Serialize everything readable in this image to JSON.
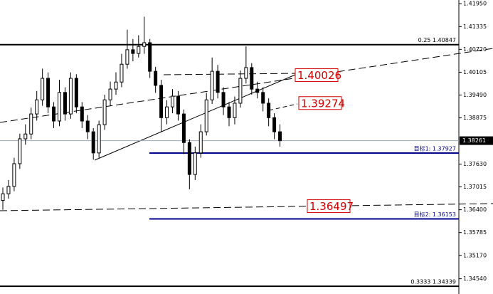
{
  "chart_data": {
    "type": "candlestick",
    "ylim": [
      1.3413,
      1.4205
    ],
    "yticks": [
      {
        "value": 1.4195,
        "label": "1.41950"
      },
      {
        "value": 1.41335,
        "label": "1.41335"
      },
      {
        "value": 1.4072,
        "label": "1.40720"
      },
      {
        "value": 1.40105,
        "label": "1.40105"
      },
      {
        "value": 1.3949,
        "label": "1.39490"
      },
      {
        "value": 1.38875,
        "label": "1.38875"
      },
      {
        "value": 1.3763,
        "label": "1.37630"
      },
      {
        "value": 1.37015,
        "label": "1.37015"
      },
      {
        "value": 1.364,
        "label": "1.36400"
      },
      {
        "value": 1.35785,
        "label": "1.35785"
      },
      {
        "value": 1.3517,
        "label": "1.35170"
      },
      {
        "value": 1.3454,
        "label": "1.34540"
      }
    ],
    "current_price": {
      "value": 1.38261,
      "label": "1.38261"
    },
    "levels": [
      {
        "value": 1.40847,
        "label": "0.25  1.40847",
        "color": "#000000"
      },
      {
        "value": 1.34339,
        "label": "0.3333  1.34339",
        "color": "#000000"
      },
      {
        "value": 1.37927,
        "label": "目标1: 1.37927",
        "color": "#00008b"
      },
      {
        "value": 1.36153,
        "label": "目标2: 1.36153",
        "color": "#00008b"
      }
    ],
    "price_labels": [
      {
        "value": 1.40026,
        "label": "1.40026"
      },
      {
        "value": 1.39274,
        "label": "1.39274"
      },
      {
        "value": 1.36497,
        "label": "1.36497"
      }
    ],
    "ohlc": [
      [
        1.3665,
        1.37,
        1.364,
        1.3683
      ],
      [
        1.3683,
        1.372,
        1.367,
        1.3703
      ],
      [
        1.3703,
        1.378,
        1.369,
        1.3764
      ],
      [
        1.3764,
        1.3845,
        1.375,
        1.3831
      ],
      [
        1.3831,
        1.387,
        1.3815,
        1.3844
      ],
      [
        1.3844,
        1.3915,
        1.383,
        1.3898
      ],
      [
        1.3898,
        1.396,
        1.388,
        1.3936
      ],
      [
        1.3936,
        1.402,
        1.392,
        1.3994
      ],
      [
        1.3994,
        1.401,
        1.39,
        1.3917
      ],
      [
        1.3917,
        1.393,
        1.386,
        1.3879
      ],
      [
        1.3879,
        1.399,
        1.3865,
        1.3956
      ],
      [
        1.3956,
        1.397,
        1.388,
        1.3898
      ],
      [
        1.3898,
        1.401,
        1.3885,
        1.3994
      ],
      [
        1.3994,
        1.4005,
        1.39,
        1.3917
      ],
      [
        1.3917,
        1.393,
        1.386,
        1.3879
      ],
      [
        1.3879,
        1.3895,
        1.383,
        1.385
      ],
      [
        1.385,
        1.386,
        1.3775,
        1.3793
      ],
      [
        1.3793,
        1.388,
        1.378,
        1.3869
      ],
      [
        1.3869,
        1.395,
        1.3855,
        1.3936
      ],
      [
        1.3936,
        1.3985,
        1.392,
        1.3965
      ],
      [
        1.3965,
        1.401,
        1.395,
        1.3984
      ],
      [
        1.3984,
        1.406,
        1.397,
        1.4032
      ],
      [
        1.4032,
        1.4125,
        1.402,
        1.4071
      ],
      [
        1.4071,
        1.41,
        1.404,
        1.4061
      ],
      [
        1.4061,
        1.411,
        1.405,
        1.408
      ],
      [
        1.408,
        1.416,
        1.406,
        1.409
      ],
      [
        1.409,
        1.41,
        1.3995,
        1.4013
      ],
      [
        1.4013,
        1.4025,
        1.3955,
        1.3975
      ],
      [
        1.3975,
        1.399,
        1.385,
        1.3888
      ],
      [
        1.3888,
        1.3935,
        1.387,
        1.3917
      ],
      [
        1.3917,
        1.3965,
        1.39,
        1.3946
      ],
      [
        1.3946,
        1.396,
        1.388,
        1.3898
      ],
      [
        1.3898,
        1.391,
        1.379,
        1.3821
      ],
      [
        1.3821,
        1.383,
        1.3695,
        1.3735
      ],
      [
        1.3735,
        1.381,
        1.372,
        1.3793
      ],
      [
        1.3793,
        1.387,
        1.378,
        1.385
      ],
      [
        1.385,
        1.3955,
        1.384,
        1.3936
      ],
      [
        1.3936,
        1.405,
        1.3925,
        1.4013
      ],
      [
        1.4013,
        1.403,
        1.394,
        1.3956
      ],
      [
        1.3956,
        1.397,
        1.3895,
        1.3917
      ],
      [
        1.3917,
        1.393,
        1.3865,
        1.3888
      ],
      [
        1.3888,
        1.3945,
        1.387,
        1.3927
      ],
      [
        1.3927,
        1.4015,
        1.3915,
        1.3994
      ],
      [
        1.3994,
        1.408,
        1.398,
        1.4023
      ],
      [
        1.4023,
        1.4035,
        1.395,
        1.3965
      ],
      [
        1.3965,
        1.3985,
        1.394,
        1.3956
      ],
      [
        1.3956,
        1.397,
        1.3905,
        1.3927
      ],
      [
        1.3927,
        1.394,
        1.3865,
        1.3888
      ],
      [
        1.3888,
        1.39,
        1.383,
        1.385
      ],
      [
        1.385,
        1.387,
        1.381,
        1.3826
      ]
    ]
  }
}
